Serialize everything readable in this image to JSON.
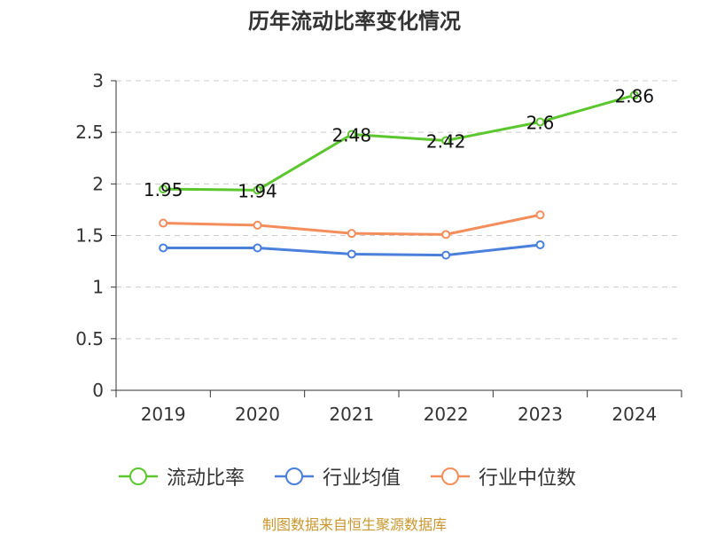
{
  "chart_data": {
    "type": "line",
    "title": "历年流动比率变化情况",
    "categories": [
      "2019",
      "2020",
      "2021",
      "2022",
      "2023",
      "2024"
    ],
    "ylim": [
      0,
      3
    ],
    "yticks": [
      "0",
      "0.5",
      "1",
      "1.5",
      "2",
      "2.5",
      "3"
    ],
    "ytick_values": [
      0,
      0.5,
      1,
      1.5,
      2,
      2.5,
      3
    ],
    "grid": true,
    "legend_position": "bottom",
    "series": [
      {
        "name": "流动比率",
        "color": "#5cc62e",
        "values": [
          1.95,
          1.94,
          2.48,
          2.42,
          2.6,
          2.86
        ],
        "labels": [
          "1.95",
          "1.94",
          "2.48",
          "2.42",
          "2.6",
          "2.86"
        ]
      },
      {
        "name": "行业均值",
        "color": "#4a7fdc",
        "values": [
          1.38,
          1.38,
          1.32,
          1.31,
          1.41,
          null
        ]
      },
      {
        "name": "行业中位数",
        "color": "#f38d5b",
        "values": [
          1.62,
          1.6,
          1.52,
          1.51,
          1.7,
          null
        ]
      }
    ]
  },
  "footer": "制图数据来自恒生聚源数据库"
}
